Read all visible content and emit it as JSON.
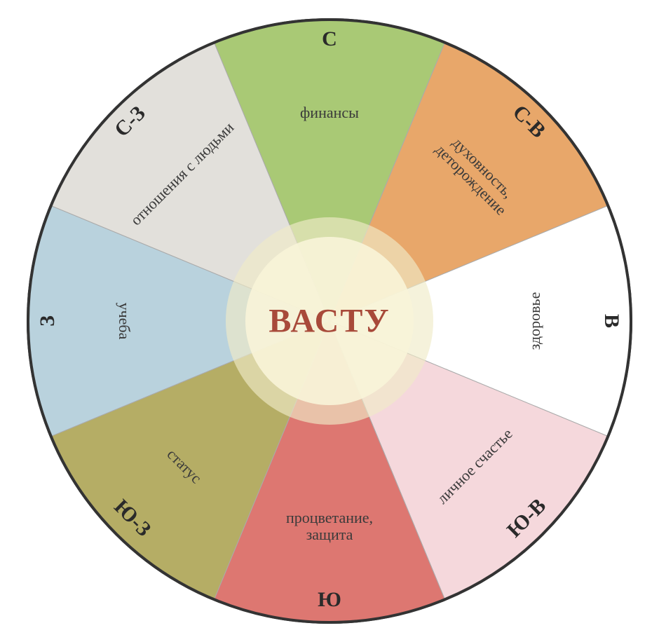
{
  "chart": {
    "type": "pie",
    "center_title": "ВАСТУ",
    "center_title_color": "#a84a3a",
    "center_title_fontsize": 48,
    "outer_radius": 430,
    "inner_radius": 120,
    "border_color": "#333333",
    "border_width": 4,
    "center_fill": "#f8f4d8",
    "center_ring_fill": "#f0ebc8",
    "background_color": "#ffffff",
    "direction_fontsize": 30,
    "desc_fontsize": 22,
    "sectors": [
      {
        "direction": "С",
        "description": "финансы",
        "color": "#a9c975",
        "angle_start": -112.5,
        "angle_end": -67.5
      },
      {
        "direction": "С-В",
        "description": "духовность, деторождение",
        "color": "#e8a76a",
        "angle_start": -67.5,
        "angle_end": -22.5
      },
      {
        "direction": "В",
        "description": "здоровье",
        "color": "#ffffff",
        "angle_start": -22.5,
        "angle_end": 22.5
      },
      {
        "direction": "Ю-В",
        "description": "личное счастье",
        "color": "#f5d8dc",
        "angle_start": 22.5,
        "angle_end": 67.5
      },
      {
        "direction": "Ю",
        "description": "процветание, защита",
        "color": "#dd7771",
        "angle_start": 67.5,
        "angle_end": 112.5
      },
      {
        "direction": "Ю-З",
        "description": "статус",
        "color": "#b5ad65",
        "angle_start": 112.5,
        "angle_end": 157.5
      },
      {
        "direction": "З",
        "description": "учеба",
        "color": "#b9d2dd",
        "angle_start": 157.5,
        "angle_end": 202.5
      },
      {
        "direction": "С-З",
        "description": "отношения с людьми",
        "color": "#e2e0db",
        "angle_start": 202.5,
        "angle_end": 247.5
      }
    ]
  }
}
